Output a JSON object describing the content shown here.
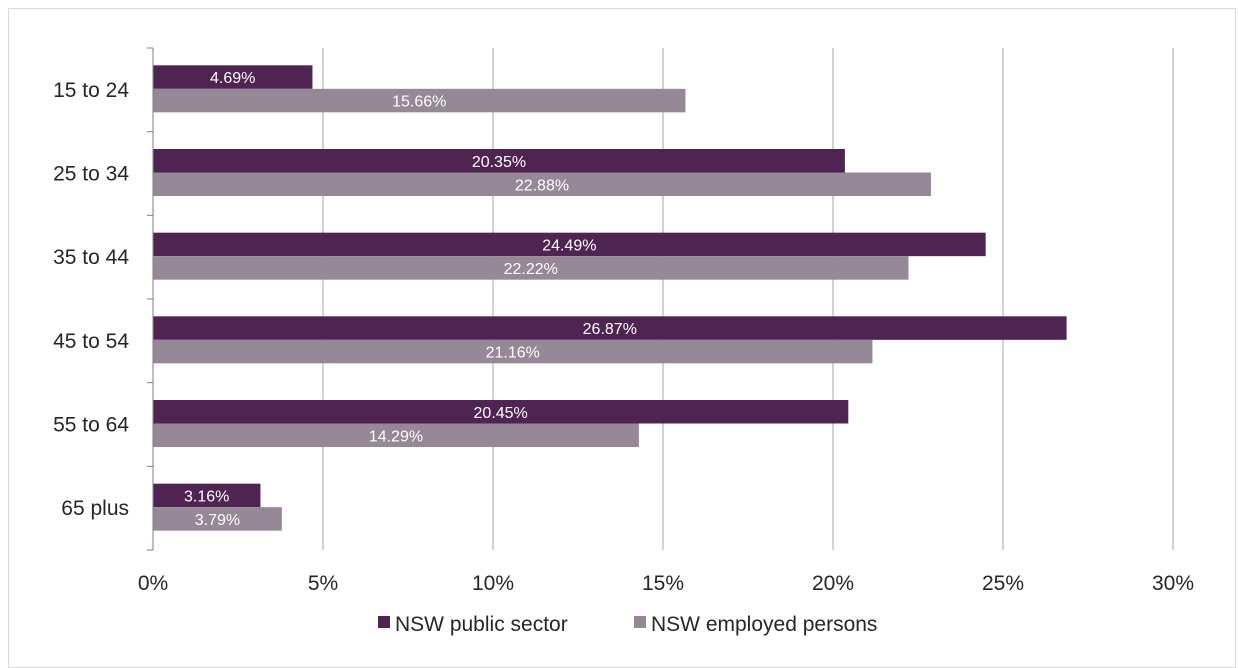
{
  "chart_data": {
    "type": "bar",
    "orientation": "horizontal",
    "title": "",
    "xlabel": "",
    "ylabel": "",
    "categories": [
      "15 to 24",
      "25 to 34",
      "35 to 44",
      "45 to 54",
      "55 to 64",
      "65 plus"
    ],
    "series": [
      {
        "name": "NSW public sector",
        "color": "#4f2453",
        "values": [
          4.69,
          20.35,
          24.49,
          26.87,
          20.45,
          3.16
        ],
        "labels": [
          "4.69%",
          "20.35%",
          "24.49%",
          "26.87%",
          "20.45%",
          "3.16%"
        ]
      },
      {
        "name": "NSW employed persons",
        "color": "#968896",
        "values": [
          15.66,
          22.88,
          22.22,
          21.16,
          14.29,
          3.79
        ],
        "labels": [
          "15.66%",
          "22.88%",
          "22.22%",
          "21.16%",
          "14.29%",
          "3.79%"
        ]
      }
    ],
    "xlim": [
      0,
      30
    ],
    "xticks": [
      0,
      5,
      10,
      15,
      20,
      25,
      30
    ],
    "xtick_labels": [
      "0%",
      "5%",
      "10%",
      "15%",
      "20%",
      "25%",
      "30%"
    ],
    "grid": "vertical",
    "legend_position": "bottom"
  }
}
